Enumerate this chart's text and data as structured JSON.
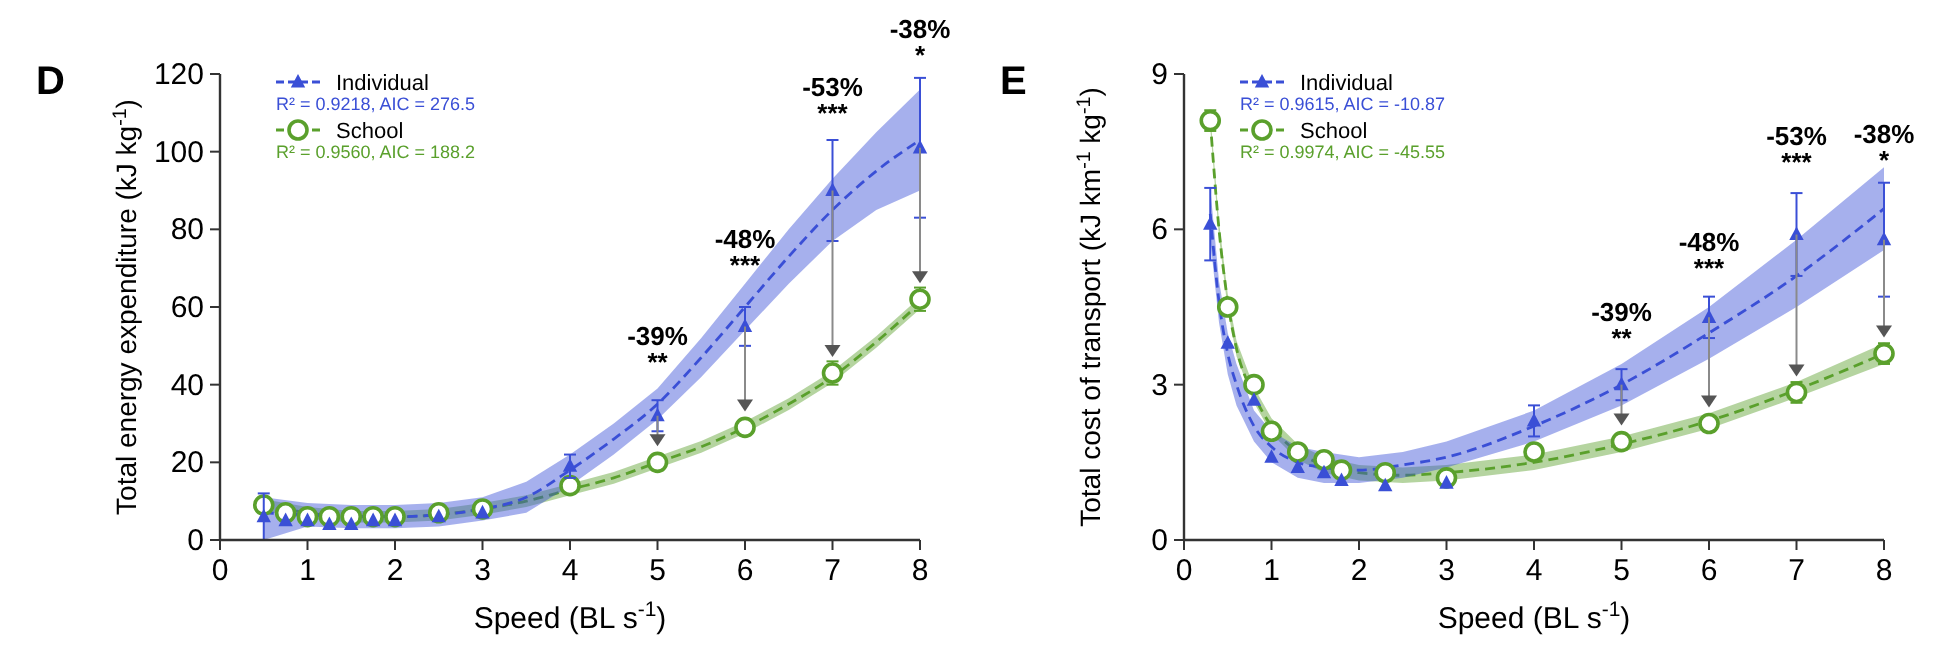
{
  "chart_data": [
    {
      "type": "scatter",
      "title": "D",
      "xlabel": "Speed (BL s$^{-1}$)",
      "ylabel": "Total energy expenditure (kJ kg$^{-1}$)",
      "xlim": [
        0,
        8
      ],
      "xticks": [
        0,
        1,
        2,
        3,
        4,
        5,
        6,
        7,
        8
      ],
      "ylim": [
        0,
        120
      ],
      "yticks": [
        0,
        20,
        40,
        60,
        80,
        100,
        120
      ],
      "grid": false,
      "legend": "top left",
      "series": [
        {
          "type": "line",
          "color": "#3a4fd6",
          "line_style": "dashed",
          "marker": "none",
          "x": [
            0.5,
            1,
            1.5,
            2,
            2.5,
            3,
            3.5,
            4,
            4.5,
            5,
            5.5,
            6,
            6.5,
            7,
            7.5,
            8
          ],
          "values": [
            7,
            6.5,
            6,
            6,
            6.5,
            8,
            11,
            18,
            26,
            35,
            47,
            60,
            73,
            85,
            95,
            103
          ],
          "lower": [
            0,
            3.5,
            3,
            3,
            3.5,
            5,
            7,
            14,
            22,
            31,
            42,
            54,
            66,
            77,
            85,
            90
          ],
          "upper": [
            11,
            9.5,
            9,
            9,
            9.5,
            11,
            15,
            22,
            30,
            39,
            52,
            66,
            80,
            93,
            105,
            116
          ]
        },
        {
          "type": "line",
          "color": "#5aa02c",
          "line_style": "dashed",
          "marker": "none",
          "x": [
            0.5,
            1,
            1.5,
            2,
            2.5,
            3,
            3.5,
            4,
            4.5,
            5,
            5.5,
            6,
            6.5,
            7,
            7.5,
            8
          ],
          "values": [
            9,
            7,
            6,
            6,
            6.5,
            8,
            10,
            13,
            16,
            20,
            24,
            29,
            35,
            42,
            51,
            61
          ],
          "lower": [
            7.5,
            5.5,
            4.5,
            4.5,
            5,
            6.5,
            8.5,
            11.5,
            14.5,
            18.5,
            22.5,
            27.5,
            33.5,
            40.5,
            49.5,
            59.5
          ],
          "upper": [
            10.5,
            8.5,
            7.5,
            7.5,
            8,
            9.5,
            11.5,
            14.5,
            17.5,
            21.5,
            25.5,
            30.5,
            36.5,
            43.5,
            52.5,
            62.5
          ]
        },
        {
          "type": "scatter",
          "name": "Individual",
          "color": "#3a4fd6",
          "marker": "triangle",
          "x": [
            0.5,
            0.75,
            1,
            1.25,
            1.5,
            1.75,
            2,
            2.5,
            3,
            4,
            5,
            6,
            7,
            8
          ],
          "values": [
            6,
            5,
            5,
            4,
            4,
            5,
            5,
            6,
            7,
            19,
            32,
            55,
            90,
            101
          ],
          "errors": [
            6,
            null,
            null,
            null,
            null,
            null,
            null,
            null,
            null,
            3,
            4,
            5,
            13,
            18
          ]
        },
        {
          "type": "scatter",
          "name": "School",
          "color": "#5aa02c",
          "marker": "circle",
          "x": [
            0.5,
            0.75,
            1,
            1.25,
            1.5,
            1.75,
            2,
            2.5,
            3,
            4,
            5,
            6,
            7,
            8
          ],
          "values": [
            9,
            7,
            6,
            6,
            6,
            6,
            6,
            7,
            8,
            14,
            20,
            29,
            43,
            62
          ],
          "errors": [
            null,
            null,
            null,
            null,
            null,
            null,
            null,
            null,
            null,
            null,
            null,
            null,
            3,
            3
          ]
        }
      ],
      "annotations": [
        "R² = 0.9218, AIC = 276.5",
        "R² = 0.9560, AIC = 188.2",
        {
          "text": "-39%\n**",
          "x": 5,
          "y": 40
        },
        {
          "text": "-48%\n***",
          "x": 6,
          "y": 65
        },
        {
          "text": "-53%\n***",
          "x": 7,
          "y": 104
        },
        {
          "text": "-38%\n*",
          "x": 8,
          "y": 119
        }
      ]
    },
    {
      "type": "scatter",
      "title": "E",
      "xlabel": "Speed (BL s$^{-1}$)",
      "ylabel": "Total cost of transport (kJ km$^{-1}$ kg$^{-1}$)",
      "xlim": [
        0,
        8
      ],
      "xticks": [
        0,
        1,
        2,
        3,
        4,
        5,
        6,
        7,
        8
      ],
      "ylim": [
        0,
        9
      ],
      "yticks": [
        0,
        3,
        6,
        9
      ],
      "grid": false,
      "legend": "top left",
      "series": [
        {
          "type": "line",
          "color": "#3a4fd6",
          "line_style": "dashed",
          "marker": "none",
          "x": [
            0.3,
            0.4,
            0.5,
            0.6,
            0.8,
            1,
            1.3,
            1.6,
            2,
            2.5,
            3,
            4,
            5,
            6,
            7,
            8
          ],
          "values": [
            6.3,
            4.6,
            3.6,
            3.0,
            2.2,
            1.8,
            1.5,
            1.4,
            1.35,
            1.45,
            1.6,
            2.2,
            3.0,
            4.0,
            5.1,
            6.4
          ],
          "lower": [
            5.8,
            4.2,
            3.2,
            2.6,
            1.9,
            1.5,
            1.2,
            1.1,
            1.1,
            1.2,
            1.4,
            1.9,
            2.6,
            3.5,
            4.5,
            5.6
          ],
          "upper": [
            6.8,
            5.0,
            4.0,
            3.4,
            2.5,
            2.1,
            1.8,
            1.7,
            1.6,
            1.7,
            1.9,
            2.5,
            3.4,
            4.5,
            5.8,
            7.2
          ]
        },
        {
          "type": "line",
          "color": "#5aa02c",
          "line_style": "dashed",
          "marker": "none",
          "x": [
            0.3,
            0.4,
            0.5,
            0.6,
            0.8,
            1,
            1.3,
            1.6,
            2,
            2.5,
            3,
            4,
            5,
            6,
            7,
            8
          ],
          "values": [
            8.1,
            6.0,
            4.6,
            3.7,
            2.8,
            2.2,
            1.7,
            1.45,
            1.3,
            1.25,
            1.3,
            1.5,
            1.85,
            2.3,
            2.9,
            3.6
          ],
          "lower": [
            7.95,
            5.85,
            4.45,
            3.55,
            2.65,
            2.05,
            1.55,
            1.3,
            1.15,
            1.1,
            1.15,
            1.35,
            1.7,
            2.15,
            2.75,
            3.4
          ],
          "upper": [
            8.25,
            6.15,
            4.75,
            3.85,
            2.95,
            2.35,
            1.85,
            1.6,
            1.45,
            1.4,
            1.45,
            1.65,
            2.0,
            2.45,
            3.05,
            3.8
          ]
        },
        {
          "type": "scatter",
          "name": "Individual",
          "color": "#3a4fd6",
          "marker": "triangle",
          "x": [
            0.3,
            0.5,
            0.8,
            1,
            1.3,
            1.6,
            1.8,
            2.3,
            3,
            4,
            5,
            6,
            7,
            8
          ],
          "values": [
            6.1,
            3.8,
            2.7,
            1.6,
            1.4,
            1.3,
            1.15,
            1.05,
            1.1,
            2.3,
            3.0,
            4.3,
            5.9,
            5.8
          ],
          "errors": [
            0.7,
            null,
            null,
            null,
            null,
            null,
            null,
            null,
            null,
            0.3,
            0.3,
            0.4,
            0.8,
            1.1
          ]
        },
        {
          "type": "scatter",
          "name": "School",
          "color": "#5aa02c",
          "marker": "circle",
          "x": [
            0.3,
            0.5,
            0.8,
            1,
            1.3,
            1.6,
            1.8,
            2.3,
            3,
            4,
            5,
            6,
            7,
            8
          ],
          "values": [
            8.1,
            4.5,
            3.0,
            2.1,
            1.7,
            1.55,
            1.35,
            1.3,
            1.2,
            1.7,
            1.9,
            2.25,
            2.85,
            3.6
          ],
          "errors": [
            0.2,
            null,
            null,
            null,
            null,
            null,
            null,
            null,
            null,
            null,
            null,
            null,
            0.2,
            0.2
          ]
        }
      ],
      "annotations": [
        "R² = 0.9615, AIC = -10.87",
        "R² = 0.9974, AIC = -45.55",
        {
          "text": "-39%\n**",
          "x": 5,
          "y": 3.45
        },
        {
          "text": "-48%\n***",
          "x": 6,
          "y": 4.8
        },
        {
          "text": "-53%\n***",
          "x": 7,
          "y": 6.85
        },
        {
          "text": "-38%\n*",
          "x": 8,
          "y": 6.9
        }
      ]
    }
  ]
}
